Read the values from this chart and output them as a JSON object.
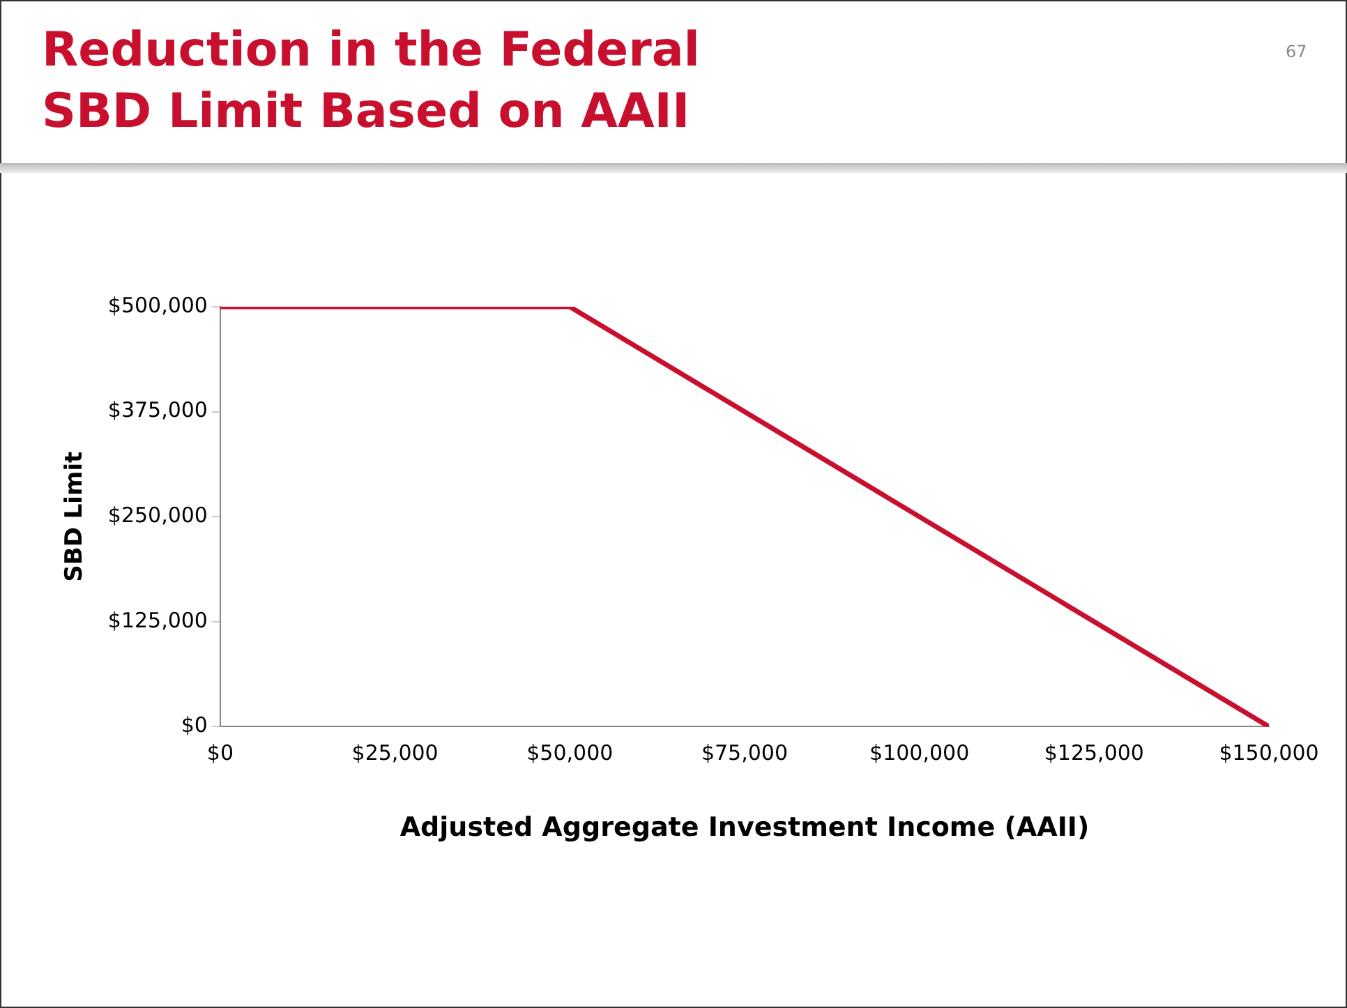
{
  "chart_data": {
    "type": "line",
    "title": "Reduction in the Federal\nSBD Limit Based on AAII",
    "xlabel": "Adjusted Aggregate Investment Income (AAII)",
    "ylabel": "SBD Limit",
    "x": [
      0,
      50000,
      150000
    ],
    "series": [
      {
        "color": "#c8102e",
        "values": [
          500000,
          500000,
          0
        ]
      }
    ],
    "xlim": [
      0,
      150000
    ],
    "xticks": [
      {
        "value": 0,
        "label": "$0"
      },
      {
        "value": 25000,
        "label": "$25,000"
      },
      {
        "value": 50000,
        "label": "$50,000"
      },
      {
        "value": 75000,
        "label": "$75,000"
      },
      {
        "value": 100000,
        "label": "$100,000"
      },
      {
        "value": 125000,
        "label": "$125,000"
      },
      {
        "value": 150000,
        "label": "$150,000"
      }
    ],
    "ylim": [
      0,
      500000
    ],
    "yticks": [
      {
        "value": 0,
        "label": "$0"
      },
      {
        "value": 125000,
        "label": "$125,000"
      },
      {
        "value": 250000,
        "label": "$250,000"
      },
      {
        "value": 375000,
        "label": "$375,000"
      },
      {
        "value": 500000,
        "label": "$500,000"
      }
    ],
    "grid": false,
    "legend": false,
    "marker": "none",
    "line_style": "solid",
    "annotations": [
      "67"
    ]
  }
}
